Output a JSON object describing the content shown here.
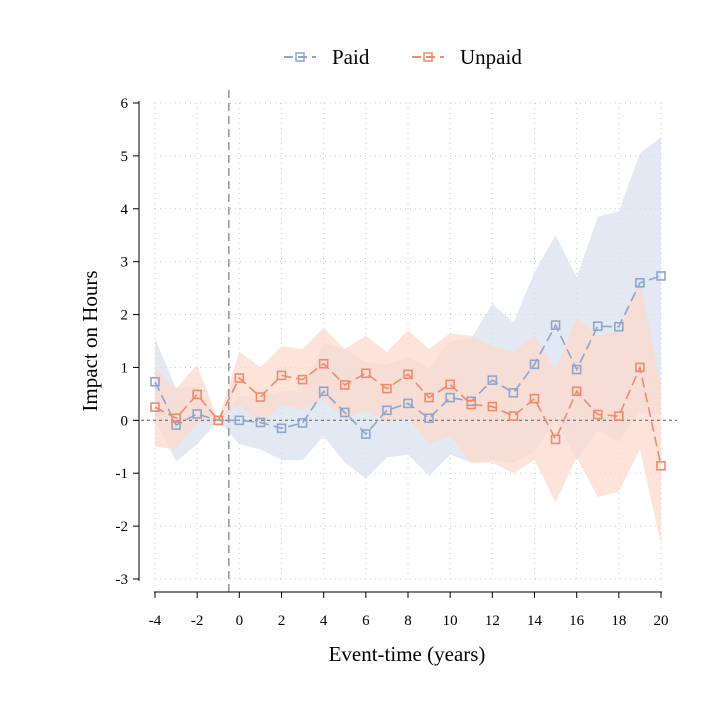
{
  "chart_data": {
    "type": "line",
    "title": "",
    "xlabel": "Event-time (years)",
    "ylabel": "Impact on Hours",
    "xlim": [
      -4,
      20
    ],
    "ylim": [
      -3,
      6
    ],
    "xticks": [
      "-4",
      "-2",
      "0",
      "2",
      "4",
      "6",
      "8",
      "10",
      "12",
      "14",
      "16",
      "18",
      "20"
    ],
    "yticks": [
      "-3",
      "-2",
      "-1",
      "0",
      "1",
      "2",
      "3",
      "4",
      "5",
      "6"
    ],
    "grid": true,
    "legend_position": "top",
    "reference_lines": {
      "vertical_x": -0.5,
      "horizontal_y": 0
    },
    "x": [
      -4,
      -3,
      -2,
      -1,
      0,
      1,
      2,
      3,
      4,
      5,
      6,
      7,
      8,
      9,
      10,
      11,
      12,
      13,
      14,
      15,
      16,
      17,
      18,
      19,
      20
    ],
    "series": [
      {
        "name": "Paid",
        "color": "#8ea5ce",
        "band_color": "#dae1ee",
        "values": [
          0.73,
          -0.09,
          0.12,
          0.0,
          0.0,
          -0.04,
          -0.15,
          -0.05,
          0.55,
          0.15,
          -0.26,
          0.19,
          0.32,
          0.04,
          0.43,
          0.36,
          0.76,
          0.52,
          1.06,
          1.8,
          0.96,
          1.78,
          1.77,
          2.6,
          2.73
        ],
        "ci_upper": [
          1.55,
          0.6,
          0.65,
          0.0,
          0.45,
          0.45,
          0.55,
          0.55,
          1.45,
          1.35,
          1.1,
          1.05,
          1.2,
          1.0,
          1.5,
          1.55,
          2.2,
          1.85,
          2.8,
          3.5,
          2.7,
          3.85,
          3.95,
          5.05,
          5.35
        ],
        "ci_lower": [
          0.0,
          -0.78,
          -0.45,
          0.0,
          -0.45,
          -0.55,
          -0.75,
          -0.75,
          -0.3,
          -0.8,
          -1.1,
          -0.7,
          -0.65,
          -1.05,
          -0.65,
          -0.8,
          -0.75,
          -0.8,
          -0.6,
          0.0,
          -0.75,
          -0.2,
          -0.4,
          0.15,
          0.1
        ]
      },
      {
        "name": "Unpaid",
        "color": "#f08a6c",
        "band_color": "#fcd9cd",
        "values": [
          0.25,
          0.04,
          0.49,
          0.0,
          0.8,
          0.44,
          0.85,
          0.77,
          1.07,
          0.67,
          0.89,
          0.6,
          0.87,
          0.43,
          0.68,
          0.3,
          0.26,
          0.08,
          0.41,
          -0.36,
          0.55,
          0.11,
          0.08,
          1.0,
          -0.86
        ],
        "ci_upper": [
          1.0,
          0.6,
          1.05,
          0.0,
          1.3,
          1.0,
          1.4,
          1.35,
          1.75,
          1.35,
          1.6,
          1.3,
          1.7,
          1.35,
          1.65,
          1.6,
          1.4,
          1.3,
          1.6,
          0.95,
          1.95,
          1.6,
          1.7,
          2.65,
          0.65
        ],
        "ci_lower": [
          -0.5,
          -0.55,
          -0.05,
          0.0,
          0.3,
          -0.1,
          0.3,
          0.2,
          0.4,
          0.0,
          0.2,
          -0.05,
          0.05,
          -0.45,
          -0.3,
          -0.8,
          -0.8,
          -1.0,
          -0.75,
          -1.55,
          -0.7,
          -1.45,
          -1.35,
          -0.55,
          -2.35
        ]
      }
    ]
  }
}
